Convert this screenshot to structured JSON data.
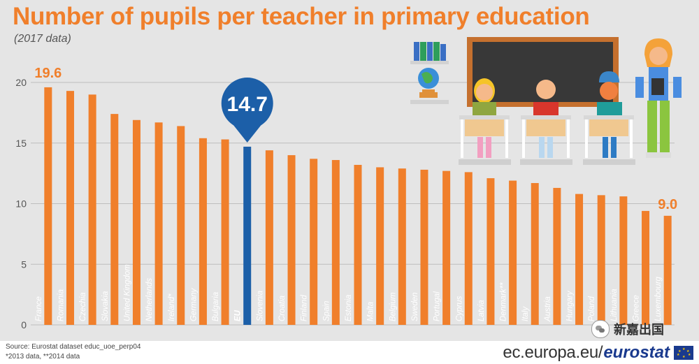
{
  "title": "Number of pupils per teacher in primary education",
  "subtitle": "(2017 data)",
  "source_line1": "Source: Eurostat dataset educ_uoe_perp04",
  "source_line2": "*2013 data, **2014 data",
  "brand": {
    "url": "ec.europa.eu/",
    "logo": "eurostat"
  },
  "watermark": "新嘉出国",
  "colors": {
    "bar": "#f07f2b",
    "eu_bar": "#1c5fa8",
    "title": "#f07f2b",
    "background": "#e5e5e5",
    "grid": "#bdbdbd"
  },
  "callouts": {
    "max": "19.6",
    "eu": "14.7",
    "min": "9.0"
  },
  "chart_data": {
    "type": "bar",
    "title": "Number of pupils per teacher in primary education",
    "subtitle": "(2017 data)",
    "categories": [
      "France",
      "Romania",
      "Czechia",
      "Slovakia",
      "United Kingdom",
      "Netherlands",
      "Ireland*",
      "Germany",
      "Bulgaria",
      "EU",
      "Slovenia",
      "Croatia",
      "Finland",
      "Spain",
      "Estonia",
      "Malta",
      "Belgium",
      "Sweden",
      "Portugal",
      "Cyprus",
      "Latvia",
      "Denmark**",
      "Italy",
      "Austria",
      "Hungary",
      "Poland",
      "Lithuania",
      "Greece",
      "Luxembourg"
    ],
    "values": [
      19.6,
      19.3,
      19.0,
      17.4,
      16.9,
      16.7,
      16.4,
      15.4,
      15.3,
      14.7,
      14.4,
      14.0,
      13.7,
      13.6,
      13.2,
      13.0,
      12.9,
      12.8,
      12.7,
      12.6,
      12.1,
      11.9,
      11.7,
      11.3,
      10.8,
      10.7,
      10.6,
      9.4,
      9.0
    ],
    "highlight": "EU",
    "yticks": [
      0,
      5,
      10,
      15,
      20
    ],
    "ylim": [
      0,
      20
    ],
    "grid": true
  }
}
